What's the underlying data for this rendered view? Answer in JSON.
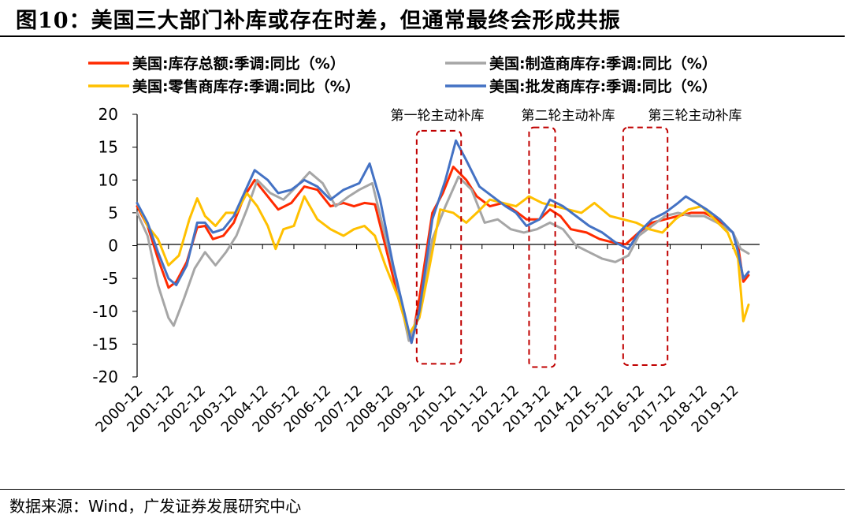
{
  "figure": {
    "title": "图10：美国三大部门补库或存在时差，但通常最终会形成共振",
    "source": "数据来源：Wind，广发证券发展研究中心"
  },
  "chart_data": {
    "type": "line",
    "title": "",
    "xlabel": "",
    "ylabel": "",
    "ylim": [
      -20,
      20
    ],
    "yticks": [
      20,
      15,
      10,
      5,
      0,
      -5,
      -10,
      -15,
      -20
    ],
    "x_tick_labels": [
      "2000-12",
      "2001-12",
      "2002-12",
      "2003-12",
      "2004-12",
      "2005-12",
      "2006-12",
      "2007-12",
      "2008-12",
      "2009-12",
      "2010-12",
      "2011-12",
      "2012-12",
      "2013-12",
      "2014-12",
      "2015-12",
      "2016-12",
      "2017-12",
      "2018-12",
      "2019-12"
    ],
    "x_range": [
      "2000-12",
      "2020-06"
    ],
    "legend_position": "top",
    "series": [
      {
        "name": "美国:库存总额:季调:同比（%）",
        "color": "#ff2a00",
        "points": [
          [
            "2000-12",
            6.0
          ],
          [
            "2001-04",
            3.0
          ],
          [
            "2001-08",
            -2.0
          ],
          [
            "2001-12",
            -6.4
          ],
          [
            "2002-03",
            -5.5
          ],
          [
            "2002-07",
            -2.5
          ],
          [
            "2002-11",
            2.8
          ],
          [
            "2003-02",
            3.0
          ],
          [
            "2003-05",
            1.0
          ],
          [
            "2003-09",
            1.5
          ],
          [
            "2004-01",
            3.5
          ],
          [
            "2004-05",
            7.5
          ],
          [
            "2004-09",
            10.0
          ],
          [
            "2005-02",
            7.5
          ],
          [
            "2005-06",
            5.5
          ],
          [
            "2005-11",
            6.5
          ],
          [
            "2006-04",
            9.0
          ],
          [
            "2006-09",
            8.5
          ],
          [
            "2007-02",
            6.0
          ],
          [
            "2007-07",
            6.5
          ],
          [
            "2007-11",
            6.0
          ],
          [
            "2008-03",
            6.5
          ],
          [
            "2008-07",
            6.3
          ],
          [
            "2008-11",
            0.0
          ],
          [
            "2009-04",
            -8.0
          ],
          [
            "2009-09",
            -14.8
          ],
          [
            "2009-12",
            -8.0
          ],
          [
            "2010-05",
            5.0
          ],
          [
            "2010-09",
            8.0
          ],
          [
            "2011-01",
            12.0
          ],
          [
            "2011-06",
            10.0
          ],
          [
            "2011-10",
            7.5
          ],
          [
            "2012-03",
            6.0
          ],
          [
            "2012-08",
            6.5
          ],
          [
            "2013-01",
            5.2
          ],
          [
            "2013-05",
            4.0
          ],
          [
            "2013-10",
            4.0
          ],
          [
            "2014-02",
            5.5
          ],
          [
            "2014-06",
            4.5
          ],
          [
            "2014-10",
            2.5
          ],
          [
            "2015-04",
            2.0
          ],
          [
            "2015-09",
            1.0
          ],
          [
            "2016-02",
            0.5
          ],
          [
            "2016-07",
            0.2
          ],
          [
            "2016-12",
            2.0
          ],
          [
            "2017-05",
            3.5
          ],
          [
            "2017-10",
            4.0
          ],
          [
            "2018-03",
            4.5
          ],
          [
            "2018-08",
            5.0
          ],
          [
            "2019-01",
            5.0
          ],
          [
            "2019-06",
            4.0
          ],
          [
            "2019-12",
            2.0
          ],
          [
            "2020-02",
            0.0
          ],
          [
            "2020-04",
            -5.5
          ],
          [
            "2020-06",
            -4.5
          ]
        ]
      },
      {
        "name": "美国:制造商库存:季调:同比（%）",
        "color": "#a6a6a6",
        "points": [
          [
            "2000-12",
            5.0
          ],
          [
            "2001-04",
            1.5
          ],
          [
            "2001-08",
            -6.0
          ],
          [
            "2001-12",
            -11.0
          ],
          [
            "2002-02",
            -12.2
          ],
          [
            "2002-06",
            -8.0
          ],
          [
            "2002-10",
            -3.5
          ],
          [
            "2003-02",
            -1.0
          ],
          [
            "2003-06",
            -3.0
          ],
          [
            "2003-10",
            -1.0
          ],
          [
            "2004-02",
            1.5
          ],
          [
            "2004-06",
            5.5
          ],
          [
            "2004-10",
            10.0
          ],
          [
            "2005-03",
            8.0
          ],
          [
            "2005-08",
            7.0
          ],
          [
            "2006-01",
            9.0
          ],
          [
            "2006-06",
            11.2
          ],
          [
            "2006-11",
            9.5
          ],
          [
            "2007-04",
            6.0
          ],
          [
            "2007-09",
            7.5
          ],
          [
            "2008-01",
            8.5
          ],
          [
            "2008-06",
            9.5
          ],
          [
            "2008-10",
            3.0
          ],
          [
            "2009-03",
            -5.0
          ],
          [
            "2009-08",
            -14.5
          ],
          [
            "2009-12",
            -10.0
          ],
          [
            "2010-05",
            1.0
          ],
          [
            "2010-10",
            6.0
          ],
          [
            "2011-03",
            10.5
          ],
          [
            "2011-08",
            8.5
          ],
          [
            "2012-01",
            3.5
          ],
          [
            "2012-06",
            4.0
          ],
          [
            "2012-11",
            2.5
          ],
          [
            "2013-04",
            2.0
          ],
          [
            "2013-09",
            2.5
          ],
          [
            "2014-02",
            3.5
          ],
          [
            "2014-07",
            2.5
          ],
          [
            "2014-12",
            0.0
          ],
          [
            "2015-05",
            -1.0
          ],
          [
            "2015-10",
            -2.0
          ],
          [
            "2016-03",
            -2.5
          ],
          [
            "2016-08",
            -1.5
          ],
          [
            "2016-12",
            1.5
          ],
          [
            "2017-05",
            3.0
          ],
          [
            "2017-10",
            4.5
          ],
          [
            "2018-03",
            5.0
          ],
          [
            "2018-08",
            4.5
          ],
          [
            "2019-01",
            4.5
          ],
          [
            "2019-06",
            3.5
          ],
          [
            "2019-12",
            2.0
          ],
          [
            "2020-03",
            -0.5
          ],
          [
            "2020-06",
            -1.2
          ]
        ]
      },
      {
        "name": "美国:零售商库存:季调:同比（%）",
        "color": "#ffc000",
        "points": [
          [
            "2000-12",
            6.5
          ],
          [
            "2001-04",
            3.0
          ],
          [
            "2001-08",
            1.0
          ],
          [
            "2001-12",
            -3.0
          ],
          [
            "2002-04",
            -1.5
          ],
          [
            "2002-08",
            4.0
          ],
          [
            "2002-11",
            7.2
          ],
          [
            "2003-02",
            4.5
          ],
          [
            "2003-06",
            3.0
          ],
          [
            "2003-10",
            5.0
          ],
          [
            "2004-02",
            5.0
          ],
          [
            "2004-06",
            8.0
          ],
          [
            "2004-10",
            6.0
          ],
          [
            "2005-02",
            3.0
          ],
          [
            "2005-05",
            -0.5
          ],
          [
            "2005-08",
            2.5
          ],
          [
            "2005-12",
            3.0
          ],
          [
            "2006-04",
            7.5
          ],
          [
            "2006-09",
            4.0
          ],
          [
            "2007-02",
            2.5
          ],
          [
            "2007-07",
            1.5
          ],
          [
            "2007-11",
            2.5
          ],
          [
            "2008-03",
            3.0
          ],
          [
            "2008-07",
            1.5
          ],
          [
            "2008-11",
            -3.0
          ],
          [
            "2009-04",
            -8.0
          ],
          [
            "2009-08",
            -13.5
          ],
          [
            "2009-12",
            -11.0
          ],
          [
            "2010-04",
            -3.0
          ],
          [
            "2010-08",
            5.5
          ],
          [
            "2011-01",
            5.0
          ],
          [
            "2011-06",
            3.5
          ],
          [
            "2011-10",
            5.0
          ],
          [
            "2012-03",
            7.0
          ],
          [
            "2012-08",
            6.5
          ],
          [
            "2013-01",
            6.0
          ],
          [
            "2013-06",
            7.5
          ],
          [
            "2013-11",
            6.5
          ],
          [
            "2014-04",
            6.0
          ],
          [
            "2014-09",
            5.5
          ],
          [
            "2015-02",
            5.0
          ],
          [
            "2015-07",
            6.5
          ],
          [
            "2016-01",
            4.5
          ],
          [
            "2016-06",
            4.0
          ],
          [
            "2016-11",
            3.5
          ],
          [
            "2017-04",
            2.5
          ],
          [
            "2017-09",
            2.0
          ],
          [
            "2018-02",
            4.0
          ],
          [
            "2018-07",
            5.5
          ],
          [
            "2018-12",
            6.0
          ],
          [
            "2019-05",
            4.0
          ],
          [
            "2019-10",
            2.0
          ],
          [
            "2020-02",
            -2.0
          ],
          [
            "2020-04",
            -11.5
          ],
          [
            "2020-06",
            -9.0
          ]
        ]
      },
      {
        "name": "美国:批发商库存:季调:同比（%）",
        "color": "#4472c4",
        "points": [
          [
            "2000-12",
            6.5
          ],
          [
            "2001-04",
            3.5
          ],
          [
            "2001-08",
            -1.0
          ],
          [
            "2001-12",
            -5.0
          ],
          [
            "2002-03",
            -6.0
          ],
          [
            "2002-07",
            -3.0
          ],
          [
            "2002-11",
            3.5
          ],
          [
            "2003-02",
            3.5
          ],
          [
            "2003-05",
            2.0
          ],
          [
            "2003-09",
            2.5
          ],
          [
            "2004-01",
            4.5
          ],
          [
            "2004-05",
            8.0
          ],
          [
            "2004-09",
            11.5
          ],
          [
            "2005-02",
            10.0
          ],
          [
            "2005-06",
            8.0
          ],
          [
            "2005-11",
            8.5
          ],
          [
            "2006-04",
            10.0
          ],
          [
            "2006-09",
            9.0
          ],
          [
            "2007-02",
            7.0
          ],
          [
            "2007-07",
            8.5
          ],
          [
            "2008-01",
            9.5
          ],
          [
            "2008-05",
            12.5
          ],
          [
            "2008-09",
            7.0
          ],
          [
            "2009-02",
            -3.0
          ],
          [
            "2009-09",
            -14.8
          ],
          [
            "2009-12",
            -10.0
          ],
          [
            "2010-05",
            4.0
          ],
          [
            "2010-10",
            10.0
          ],
          [
            "2011-02",
            16.0
          ],
          [
            "2011-06",
            13.0
          ],
          [
            "2011-11",
            9.0
          ],
          [
            "2012-04",
            7.5
          ],
          [
            "2012-09",
            6.0
          ],
          [
            "2013-01",
            5.0
          ],
          [
            "2013-05",
            3.0
          ],
          [
            "2013-10",
            4.0
          ],
          [
            "2014-02",
            7.0
          ],
          [
            "2014-07",
            6.0
          ],
          [
            "2014-12",
            4.5
          ],
          [
            "2015-05",
            3.0
          ],
          [
            "2015-10",
            2.0
          ],
          [
            "2016-03",
            0.5
          ],
          [
            "2016-08",
            -0.5
          ],
          [
            "2016-12",
            2.0
          ],
          [
            "2017-05",
            4.0
          ],
          [
            "2017-10",
            5.0
          ],
          [
            "2018-03",
            6.5
          ],
          [
            "2018-06",
            7.5
          ],
          [
            "2018-10",
            6.5
          ],
          [
            "2019-02",
            5.5
          ],
          [
            "2019-07",
            4.0
          ],
          [
            "2019-12",
            2.0
          ],
          [
            "2020-02",
            -1.0
          ],
          [
            "2020-04",
            -5.0
          ],
          [
            "2020-06",
            -4.0
          ]
        ]
      }
    ],
    "annotations": [
      {
        "label": "第一轮主动补库",
        "from": "2009-11",
        "to": "2011-04",
        "y_top": 17.5,
        "y_bottom": -18.0
      },
      {
        "label": "第二轮主动补库",
        "from": "2013-06",
        "to": "2014-04",
        "y_top": 18.0,
        "y_bottom": -18.5
      },
      {
        "label": "第三轮主动补库",
        "from": "2016-06",
        "to": "2017-11",
        "y_top": 18.0,
        "y_bottom": -18.2
      }
    ]
  }
}
